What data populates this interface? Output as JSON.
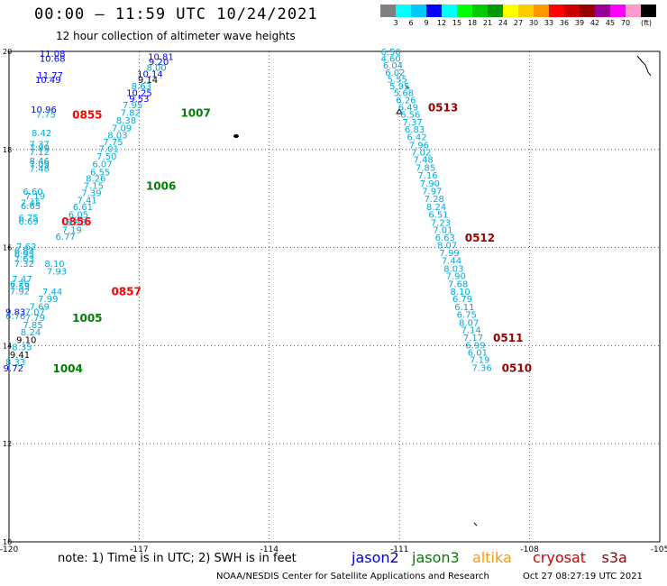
{
  "header": {
    "title": "00:00 – 11:59 UTC 10/24/2021",
    "subtitle": "12 hour collection of altimeter wave heights"
  },
  "colorbar": {
    "unit": "(ft)",
    "colors": [
      "#808080",
      "#00ffff",
      "#00c8ff",
      "#0000ff",
      "#00ffff",
      "#00ff00",
      "#00cc00",
      "#009900",
      "#ffff00",
      "#ffcc00",
      "#ff9900",
      "#ff0000",
      "#cc0000",
      "#990000",
      "#990099",
      "#ff00ff",
      "#ff99cc",
      "#000000"
    ],
    "labels": [
      "3",
      "6",
      "9",
      "12",
      "15",
      "18",
      "21",
      "24",
      "27",
      "30",
      "33",
      "36",
      "39",
      "42",
      "45",
      "70"
    ]
  },
  "axes": {
    "lon_ticks": [
      "-120",
      "-117",
      "-114",
      "-111",
      "-108",
      "-105"
    ],
    "lat_ticks": [
      "20",
      "18",
      "16",
      "14",
      "12",
      "10"
    ]
  },
  "tracks": [
    {
      "time": "0855",
      "color": "#ff0000",
      "points": [
        {
          "t": "11.08",
          "c": "#0000ff",
          "lon": -119.0,
          "lat": 19.96
        },
        {
          "t": "10.68",
          "c": "#0000ff",
          "lon": -119.0,
          "lat": 19.86
        },
        {
          "t": "11.77",
          "c": "#0000ff",
          "lon": -119.05,
          "lat": 19.52
        },
        {
          "t": "10.49",
          "c": "#0000ff",
          "lon": -119.1,
          "lat": 19.43
        },
        {
          "t": "10.96",
          "c": "#0000ff",
          "lon": -119.2,
          "lat": 18.82
        },
        {
          "t": "7.75",
          "c": "#00aadd",
          "lon": -119.15,
          "lat": 18.72
        }
      ]
    },
    {
      "time": "1007",
      "color": "#008000",
      "points": [
        {
          "t": "10.81",
          "c": "#0000ff",
          "lon": -116.5,
          "lat": 19.9
        },
        {
          "t": "9.20",
          "c": "#0000ff",
          "lon": -116.55,
          "lat": 19.8
        },
        {
          "t": "8.00",
          "c": "#00aadd",
          "lon": -116.6,
          "lat": 19.68
        },
        {
          "t": "10.14",
          "c": "#0000ff",
          "lon": -116.75,
          "lat": 19.55
        },
        {
          "t": "9.14",
          "c": "#000000",
          "lon": -116.8,
          "lat": 19.43
        },
        {
          "t": "8.63",
          "c": "#00aadd",
          "lon": -116.95,
          "lat": 19.3
        },
        {
          "t": "10.25",
          "c": "#0000ff",
          "lon": -117.0,
          "lat": 19.16
        },
        {
          "t": "9.53",
          "c": "#0000ff",
          "lon": -117.0,
          "lat": 19.04
        },
        {
          "t": "7.95",
          "c": "#00aadd",
          "lon": -117.15,
          "lat": 18.92
        },
        {
          "t": "7.82",
          "c": "#00aadd",
          "lon": -117.2,
          "lat": 18.76
        }
      ]
    },
    {
      "time": "1006",
      "color": "#008000",
      "points": [
        {
          "t": "8.38",
          "c": "#00aadd",
          "lon": -117.3,
          "lat": 18.6
        },
        {
          "t": "7.09",
          "c": "#00aadd",
          "lon": -117.4,
          "lat": 18.45
        },
        {
          "t": "8.03",
          "c": "#00aadd",
          "lon": -117.5,
          "lat": 18.3
        },
        {
          "t": "7.75",
          "c": "#00aadd",
          "lon": -117.6,
          "lat": 18.16
        },
        {
          "t": "7.01",
          "c": "#00aadd",
          "lon": -117.7,
          "lat": 18.02
        },
        {
          "t": "7.50",
          "c": "#00aadd",
          "lon": -117.75,
          "lat": 17.87
        },
        {
          "t": "6.07",
          "c": "#00aadd",
          "lon": -117.85,
          "lat": 17.71
        },
        {
          "t": "6.55",
          "c": "#00aadd",
          "lon": -117.9,
          "lat": 17.55
        },
        {
          "t": "8.26",
          "c": "#00aadd",
          "lon": -118.0,
          "lat": 17.42
        },
        {
          "t": "7.15",
          "c": "#00aadd",
          "lon": -118.05,
          "lat": 17.27
        }
      ]
    },
    {
      "time": "0856",
      "color": "#ff0000",
      "points": [
        {
          "t": "8.42",
          "c": "#00aadd",
          "lon": -119.25,
          "lat": 18.35
        },
        {
          "t": "7.37",
          "c": "#00aadd",
          "lon": -119.3,
          "lat": 18.12
        },
        {
          "t": "7.99",
          "c": "#00aadd",
          "lon": -119.3,
          "lat": 18.04
        },
        {
          "t": "7.12",
          "c": "#00aadd",
          "lon": -119.3,
          "lat": 17.96
        },
        {
          "t": "8.46",
          "c": "#00aadd",
          "lon": -119.3,
          "lat": 17.78
        },
        {
          "t": "7.09",
          "c": "#00aadd",
          "lon": -119.3,
          "lat": 17.7
        },
        {
          "t": "7.48",
          "c": "#00aadd",
          "lon": -119.3,
          "lat": 17.62
        },
        {
          "t": "6.60",
          "c": "#00aadd",
          "lon": -119.45,
          "lat": 17.15
        },
        {
          "t": "7.19",
          "c": "#00aadd",
          "lon": -119.4,
          "lat": 17.06
        },
        {
          "t": "7.45",
          "c": "#00aadd",
          "lon": -119.5,
          "lat": 16.92
        },
        {
          "t": "6.65",
          "c": "#00aadd",
          "lon": -119.5,
          "lat": 16.86
        },
        {
          "t": "6.75",
          "c": "#00aadd",
          "lon": -119.55,
          "lat": 16.62
        },
        {
          "t": "6.69",
          "c": "#00aadd",
          "lon": -119.55,
          "lat": 16.54
        }
      ]
    },
    {
      "time": "0857",
      "color": "#ff0000",
      "points": [
        {
          "t": "7.39",
          "c": "#00aadd",
          "lon": -118.1,
          "lat": 17.12
        },
        {
          "t": "7.41",
          "c": "#00aadd",
          "lon": -118.2,
          "lat": 16.98
        },
        {
          "t": "6.61",
          "c": "#00aadd",
          "lon": -118.3,
          "lat": 16.84
        },
        {
          "t": "6.05",
          "c": "#00aadd",
          "lon": -118.4,
          "lat": 16.68
        },
        {
          "t": "6.93",
          "c": "#00aadd",
          "lon": -118.45,
          "lat": 16.53
        },
        {
          "t": "7.19",
          "c": "#00aadd",
          "lon": -118.55,
          "lat": 16.37
        },
        {
          "t": "6.77",
          "c": "#00aadd",
          "lon": -118.7,
          "lat": 16.23
        },
        {
          "t": "7.62",
          "c": "#00aadd",
          "lon": -119.6,
          "lat": 16.03
        },
        {
          "t": "6.83",
          "c": "#00aadd",
          "lon": -119.65,
          "lat": 15.95
        },
        {
          "t": "6.95",
          "c": "#00aadd",
          "lon": -119.65,
          "lat": 15.87
        },
        {
          "t": "7.63",
          "c": "#00aadd",
          "lon": -119.65,
          "lat": 15.78
        },
        {
          "t": "7.32",
          "c": "#00aadd",
          "lon": -119.65,
          "lat": 15.68
        },
        {
          "t": "8.10",
          "c": "#00aadd",
          "lon": -118.95,
          "lat": 15.68
        },
        {
          "t": "7.93",
          "c": "#00aadd",
          "lon": -118.9,
          "lat": 15.52
        },
        {
          "t": "7.47",
          "c": "#00aadd",
          "lon": -119.7,
          "lat": 15.37
        },
        {
          "t": "6.26",
          "c": "#00aadd",
          "lon": -119.75,
          "lat": 15.27
        },
        {
          "t": "7.53",
          "c": "#00aadd",
          "lon": -119.75,
          "lat": 15.22
        },
        {
          "t": "7.92",
          "c": "#00aadd",
          "lon": -119.75,
          "lat": 15.12
        }
      ]
    },
    {
      "time": "1005",
      "color": "#008000",
      "points": [
        {
          "t": "7.44",
          "c": "#00aadd",
          "lon": -119.0,
          "lat": 15.11
        },
        {
          "t": "7.99",
          "c": "#00aadd",
          "lon": -119.1,
          "lat": 14.96
        },
        {
          "t": "7.69",
          "c": "#00aadd",
          "lon": -119.3,
          "lat": 14.81
        },
        {
          "t": "9.83",
          "c": "#0000ff",
          "lon": -119.85,
          "lat": 14.7
        },
        {
          "t": "7.07",
          "c": "#00aadd",
          "lon": -119.4,
          "lat": 14.7
        },
        {
          "t": "6.76",
          "c": "#00aadd",
          "lon": -119.85,
          "lat": 14.61
        },
        {
          "t": "7.79",
          "c": "#00aadd",
          "lon": -119.4,
          "lat": 14.58
        }
      ]
    },
    {
      "time": "1004",
      "color": "#008000",
      "points": [
        {
          "t": "7.85",
          "c": "#00aadd",
          "lon": -119.45,
          "lat": 14.43
        },
        {
          "t": "8.24",
          "c": "#00aadd",
          "lon": -119.5,
          "lat": 14.28
        },
        {
          "t": "9.10",
          "c": "#000000",
          "lon": -119.6,
          "lat": 14.13
        },
        {
          "t": "8.35",
          "c": "#00aadd",
          "lon": -119.7,
          "lat": 13.98
        },
        {
          "t": "9.41",
          "c": "#000000",
          "lon": -119.75,
          "lat": 13.82
        },
        {
          "t": "8.33",
          "c": "#00aadd",
          "lon": -119.85,
          "lat": 13.68
        },
        {
          "t": "9.72",
          "c": "#0000ff",
          "lon": -119.9,
          "lat": 13.55
        }
      ]
    },
    {
      "time": "0513",
      "color": "#990000",
      "points": [
        {
          "t": "6.50",
          "c": "#00aadd",
          "lon": -111.2,
          "lat": 20.0
        },
        {
          "t": "4.60",
          "c": "#00aadd",
          "lon": -111.2,
          "lat": 19.86
        },
        {
          "t": "6.04",
          "c": "#00aadd",
          "lon": -111.15,
          "lat": 19.72
        },
        {
          "t": "6.02",
          "c": "#00aadd",
          "lon": -111.1,
          "lat": 19.58
        },
        {
          "t": "5.55",
          "c": "#00aadd",
          "lon": -111.05,
          "lat": 19.44
        },
        {
          "t": "5.95",
          "c": "#00aadd",
          "lon": -111.0,
          "lat": 19.3
        },
        {
          "t": "5.68",
          "c": "#00aadd",
          "lon": -110.9,
          "lat": 19.16
        },
        {
          "t": "6.26",
          "c": "#00aadd",
          "lon": -110.85,
          "lat": 19.02
        },
        {
          "t": "6.49",
          "c": "#00aadd",
          "lon": -110.8,
          "lat": 18.87
        }
      ]
    },
    {
      "time": "0512",
      "color": "#990000",
      "points": [
        {
          "t": "6.56",
          "c": "#00aadd",
          "lon": -110.75,
          "lat": 18.72
        },
        {
          "t": "7.37",
          "c": "#00aadd",
          "lon": -110.7,
          "lat": 18.57
        },
        {
          "t": "6.83",
          "c": "#00aadd",
          "lon": -110.65,
          "lat": 18.42
        },
        {
          "t": "6.42",
          "c": "#00aadd",
          "lon": -110.6,
          "lat": 18.26
        },
        {
          "t": "7.96",
          "c": "#00aadd",
          "lon": -110.55,
          "lat": 18.1
        },
        {
          "t": "7.02",
          "c": "#00aadd",
          "lon": -110.5,
          "lat": 17.95
        },
        {
          "t": "7.48",
          "c": "#00aadd",
          "lon": -110.45,
          "lat": 17.8
        },
        {
          "t": "7.85",
          "c": "#00aadd",
          "lon": -110.4,
          "lat": 17.64
        },
        {
          "t": "7.16",
          "c": "#00aadd",
          "lon": -110.35,
          "lat": 17.48
        },
        {
          "t": "7.90",
          "c": "#00aadd",
          "lon": -110.3,
          "lat": 17.32
        },
        {
          "t": "7.97",
          "c": "#00aadd",
          "lon": -110.25,
          "lat": 17.16
        },
        {
          "t": "7.28",
          "c": "#00aadd",
          "lon": -110.2,
          "lat": 17.0
        },
        {
          "t": "8.24",
          "c": "#00aadd",
          "lon": -110.15,
          "lat": 16.84
        },
        {
          "t": "6.51",
          "c": "#00aadd",
          "lon": -110.1,
          "lat": 16.68
        },
        {
          "t": "7.23",
          "c": "#00aadd",
          "lon": -110.05,
          "lat": 16.52
        },
        {
          "t": "7.01",
          "c": "#00aadd",
          "lon": -110.0,
          "lat": 16.37
        },
        {
          "t": "6.63",
          "c": "#00aadd",
          "lon": -109.95,
          "lat": 16.21
        }
      ]
    },
    {
      "time": "0511",
      "color": "#990000",
      "points": [
        {
          "t": "8.07",
          "c": "#00aadd",
          "lon": -109.9,
          "lat": 16.06
        },
        {
          "t": "7.99",
          "c": "#00aadd",
          "lon": -109.85,
          "lat": 15.9
        },
        {
          "t": "7.44",
          "c": "#00aadd",
          "lon": -109.8,
          "lat": 15.74
        },
        {
          "t": "8.03",
          "c": "#00aadd",
          "lon": -109.75,
          "lat": 15.58
        },
        {
          "t": "7.90",
          "c": "#00aadd",
          "lon": -109.7,
          "lat": 15.43
        },
        {
          "t": "7.68",
          "c": "#00aadd",
          "lon": -109.65,
          "lat": 15.27
        },
        {
          "t": "8.10",
          "c": "#00aadd",
          "lon": -109.6,
          "lat": 15.11
        },
        {
          "t": "6.79",
          "c": "#00aadd",
          "lon": -109.55,
          "lat": 14.96
        },
        {
          "t": "6.11",
          "c": "#00aadd",
          "lon": -109.5,
          "lat": 14.8
        },
        {
          "t": "6.75",
          "c": "#00aadd",
          "lon": -109.45,
          "lat": 14.64
        },
        {
          "t": "8.07",
          "c": "#00aadd",
          "lon": -109.4,
          "lat": 14.48
        },
        {
          "t": "7.14",
          "c": "#00aadd",
          "lon": -109.35,
          "lat": 14.33
        },
        {
          "t": "7.17",
          "c": "#00aadd",
          "lon": -109.3,
          "lat": 14.17
        }
      ]
    },
    {
      "time": "0510",
      "color": "#990000",
      "points": [
        {
          "t": "6.99",
          "c": "#00aadd",
          "lon": -109.25,
          "lat": 14.02
        },
        {
          "t": "6.01",
          "c": "#00aadd",
          "lon": -109.2,
          "lat": 13.87
        },
        {
          "t": "7.19",
          "c": "#00aadd",
          "lon": -109.15,
          "lat": 13.72
        },
        {
          "t": "7.36",
          "c": "#00aadd",
          "lon": -109.1,
          "lat": 13.56
        }
      ]
    }
  ],
  "footer": {
    "note": "note: 1) Time is in UTC; 2) SWH is in feet",
    "satellites": [
      {
        "name": "jason2",
        "color": "#0000cc"
      },
      {
        "name": "jason3",
        "color": "#008000"
      },
      {
        "name": "altika",
        "color": "#ff9900"
      },
      {
        "name": "cryosat",
        "color": "#cc0000"
      },
      {
        "name": "s3a",
        "color": "#990000"
      }
    ],
    "credit": "NOAA/NESDIS Center for Satellite Applications and Research",
    "timestamp": "Oct 27 08:27:19 UTC 2021"
  }
}
